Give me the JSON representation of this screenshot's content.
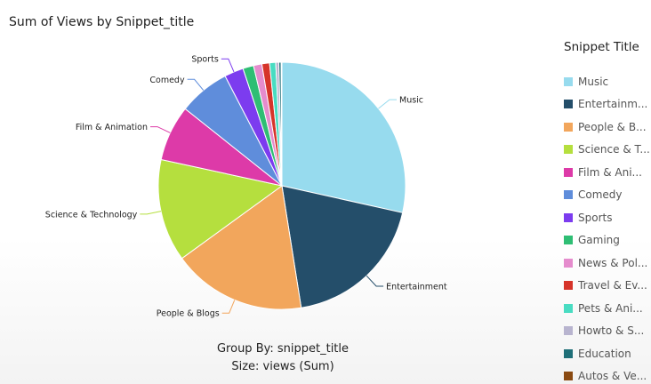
{
  "chart_data": {
    "type": "pie",
    "title": "Sum of Views by Snippet_title",
    "group_by_text": "Group By: snippet_title",
    "size_text": "Size: views (Sum)",
    "legend_title": "Snippet Title",
    "legend_placement": "right",
    "slices": [
      {
        "name": "Music",
        "legend_label": "Music",
        "value": 28.5,
        "color": "#97dbee",
        "label": "Music"
      },
      {
        "name": "Entertainment",
        "legend_label": "Entertainm...",
        "value": 19.0,
        "color": "#244e6a",
        "label": "Entertainment"
      },
      {
        "name": "People & Blogs",
        "legend_label": "People & B...",
        "value": 17.5,
        "color": "#f2a65c",
        "label": "People & Blogs"
      },
      {
        "name": "Science & Technology",
        "legend_label": "Science & T...",
        "value": 13.4,
        "color": "#b5df3e",
        "label": "Science & Technology"
      },
      {
        "name": "Film & Animation",
        "legend_label": "Film & Ani...",
        "value": 7.3,
        "color": "#dd3aa8",
        "label": "Film & Animation"
      },
      {
        "name": "Comedy",
        "legend_label": "Comedy",
        "value": 6.7,
        "color": "#5f8ddb",
        "label": "Comedy"
      },
      {
        "name": "Sports",
        "legend_label": "Sports",
        "value": 2.5,
        "color": "#7c3cef",
        "label": "Sports"
      },
      {
        "name": "Gaming",
        "legend_label": "Gaming",
        "value": 1.4,
        "color": "#2fbe74",
        "label": ""
      },
      {
        "name": "News & Politics",
        "legend_label": "News & Pol...",
        "value": 1.1,
        "color": "#e58ccd",
        "label": ""
      },
      {
        "name": "Travel & Events",
        "legend_label": "Travel & Ev...",
        "value": 1.0,
        "color": "#d6342a",
        "label": ""
      },
      {
        "name": "Pets & Animals",
        "legend_label": "Pets & Ani...",
        "value": 0.8,
        "color": "#49dcc2",
        "label": ""
      },
      {
        "name": "Howto & Style",
        "legend_label": "Howto & S...",
        "value": 0.4,
        "color": "#b8b4cf",
        "label": ""
      },
      {
        "name": "Education",
        "legend_label": "Education",
        "value": 0.3,
        "color": "#1f6f78",
        "label": ""
      },
      {
        "name": "Autos & Vehicles",
        "legend_label": "Autos & Ve...",
        "value": 0.1,
        "color": "#8a4a12",
        "label": ""
      }
    ]
  }
}
